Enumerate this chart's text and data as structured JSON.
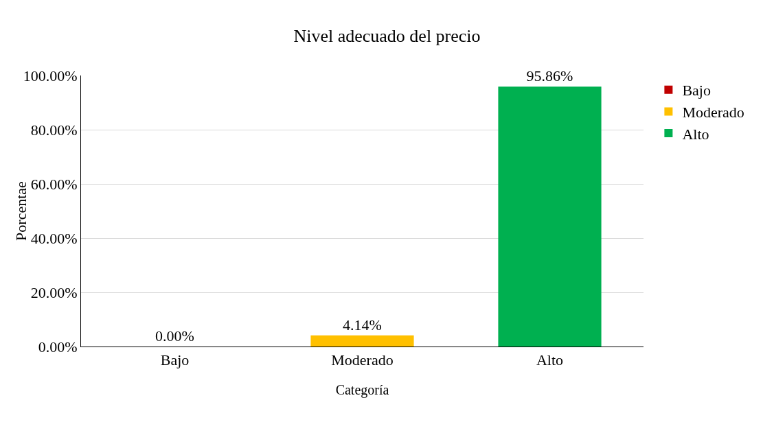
{
  "chart_data": {
    "type": "bar",
    "title": "Nivel adecuado del precio",
    "xlabel": "Categoría",
    "ylabel": "Porcentae",
    "categories": [
      "Bajo",
      "Moderado",
      "Alto"
    ],
    "series": [
      {
        "name": "Bajo",
        "color": "#c00000",
        "values": [
          0,
          null,
          null
        ],
        "value_labels": [
          "0.00%",
          null,
          null
        ]
      },
      {
        "name": "Moderado",
        "color": "#ffc000",
        "values": [
          null,
          4.14,
          null
        ],
        "value_labels": [
          null,
          "4.14%",
          null
        ]
      },
      {
        "name": "Alto",
        "color": "#00b050",
        "values": [
          null,
          null,
          95.86
        ],
        "value_labels": [
          null,
          null,
          "95.86%"
        ]
      }
    ],
    "ylim": [
      0,
      100
    ],
    "yticks": [
      {
        "value": 0,
        "label": "0.00%"
      },
      {
        "value": 20,
        "label": "20.00%"
      },
      {
        "value": 40,
        "label": "40.00%"
      },
      {
        "value": 60,
        "label": "60.00%"
      },
      {
        "value": 80,
        "label": "80.00%"
      },
      {
        "value": 100,
        "label": "100.00%"
      }
    ],
    "grid": "y",
    "legend": "right"
  }
}
